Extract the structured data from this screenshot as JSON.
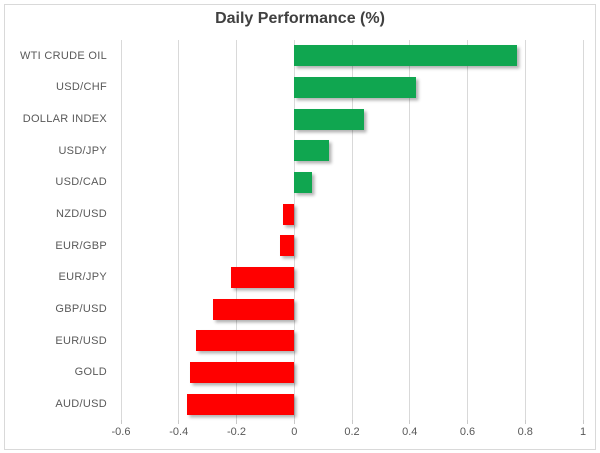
{
  "chart_data": {
    "type": "bar",
    "orientation": "horizontal",
    "title": "Daily Performance (%)",
    "categories": [
      "WTI CRUDE OIL",
      "USD/CHF",
      "DOLLAR INDEX",
      "USD/JPY",
      "USD/CAD",
      "NZD/USD",
      "EUR/GBP",
      "EUR/JPY",
      "GBP/USD",
      "EUR/USD",
      "GOLD",
      "AUD/USD"
    ],
    "values": [
      0.77,
      0.42,
      0.24,
      0.12,
      0.06,
      -0.04,
      -0.05,
      -0.22,
      -0.28,
      -0.34,
      -0.36,
      -0.37
    ],
    "xlabel": "",
    "ylabel": "",
    "xlim": [
      -0.6,
      1.0
    ],
    "x_tick_step": 0.2,
    "x_tick_labels": [
      "-0.6",
      "-0.4",
      "-0.2",
      "0",
      "0.2",
      "0.4",
      "0.6",
      "0.8",
      "1"
    ],
    "grid": true,
    "legend": "none",
    "colors": {
      "positive": "#10a650",
      "negative": "#ff0000",
      "gridline": "#d9d9d9",
      "axis_text": "#595959",
      "title_text": "#404040",
      "background": "#ffffff",
      "border": "#d9d9d9"
    }
  }
}
